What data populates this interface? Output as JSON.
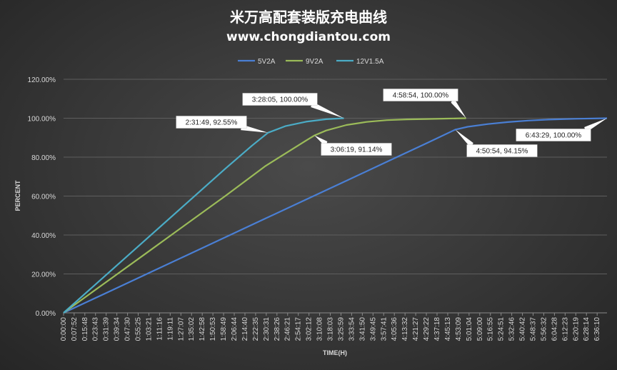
{
  "chart_data": {
    "type": "line",
    "title": "米万高配套装版充电曲线",
    "subtitle": "www.chongdiantou.com",
    "xlabel": "TIME(H)",
    "ylabel": "PERCENT",
    "ylim": [
      0,
      120
    ],
    "yticks": [
      "0.00%",
      "20.00%",
      "40.00%",
      "60.00%",
      "80.00%",
      "100.00%",
      "120.00%"
    ],
    "ytick_values": [
      0,
      20,
      40,
      60,
      80,
      100,
      120
    ],
    "xlim": [
      "0:00:00",
      "6:43:29"
    ],
    "xticks": [
      "0:00:00",
      "0:07:52",
      "0:15:48",
      "0:23:43",
      "0:31:39",
      "0:39:34",
      "0:47:30",
      "0:55:25",
      "1:03:21",
      "1:11:16",
      "1:19:11",
      "1:27:07",
      "1:35:02",
      "1:42:58",
      "1:50:53",
      "1:58:49",
      "2:06:44",
      "2:14:40",
      "2:22:35",
      "2:30:31",
      "2:38:26",
      "2:46:21",
      "2:54:17",
      "3:02:12",
      "3:10:08",
      "3:18:03",
      "3:25:59",
      "3:33:54",
      "3:41:50",
      "3:49:45",
      "3:57:41",
      "4:05:36",
      "4:13:32",
      "4:21:27",
      "4:29:22",
      "4:37:18",
      "4:45:13",
      "4:53:09",
      "5:01:04",
      "5:09:00",
      "5:16:55",
      "5:24:51",
      "5:32:46",
      "5:40:42",
      "5:48:37",
      "5:56:32",
      "6:04:28",
      "6:12:23",
      "6:20:19",
      "6:28:14",
      "6:36:10"
    ],
    "grid": true,
    "legend_position": "top",
    "series": [
      {
        "name": "5V2A",
        "color": "#4a7fd4",
        "points": [
          [
            "0:00:00",
            0
          ],
          [
            "0:30:00",
            9.7
          ],
          [
            "1:00:00",
            19.4
          ],
          [
            "1:30:00",
            29.1
          ],
          [
            "2:00:00",
            38.8
          ],
          [
            "2:30:00",
            48.5
          ],
          [
            "3:00:00",
            58.2
          ],
          [
            "3:30:00",
            67.9
          ],
          [
            "4:00:00",
            77.6
          ],
          [
            "4:30:00",
            87.3
          ],
          [
            "4:50:54",
            94.15
          ],
          [
            "5:00:00",
            95.6
          ],
          [
            "5:15:00",
            97.0
          ],
          [
            "5:30:00",
            98.0
          ],
          [
            "5:45:00",
            98.8
          ],
          [
            "6:00:00",
            99.3
          ],
          [
            "6:20:00",
            99.7
          ],
          [
            "6:43:29",
            100
          ]
        ]
      },
      {
        "name": "9V2A",
        "color": "#9bbb59",
        "points": [
          [
            "0:00:00",
            0
          ],
          [
            "0:30:00",
            15
          ],
          [
            "1:00:00",
            30
          ],
          [
            "1:30:00",
            45
          ],
          [
            "2:00:00",
            60
          ],
          [
            "2:30:00",
            75.5
          ],
          [
            "3:00:00",
            88.5
          ],
          [
            "3:06:19",
            91.14
          ],
          [
            "3:15:00",
            93.7
          ],
          [
            "3:30:00",
            96.5
          ],
          [
            "3:45:00",
            98.1
          ],
          [
            "4:00:00",
            99.0
          ],
          [
            "4:15:00",
            99.4
          ],
          [
            "4:30:00",
            99.6
          ],
          [
            "4:45:00",
            99.8
          ],
          [
            "4:58:54",
            100
          ]
        ]
      },
      {
        "name": "12V1.5A",
        "color": "#4bacc6",
        "points": [
          [
            "0:00:00",
            0
          ],
          [
            "0:30:00",
            18.5
          ],
          [
            "1:00:00",
            37
          ],
          [
            "1:30:00",
            55.5
          ],
          [
            "2:00:00",
            74
          ],
          [
            "2:20:00",
            86
          ],
          [
            "2:31:49",
            92.55
          ],
          [
            "2:45:00",
            96.0
          ],
          [
            "3:00:00",
            98.2
          ],
          [
            "3:15:00",
            99.5
          ],
          [
            "3:28:05",
            100
          ]
        ]
      }
    ],
    "annotations": [
      {
        "text": "2:31:49, 92.55%",
        "series": "12V1.5A",
        "x": "2:31:49",
        "y": 92.55
      },
      {
        "text": "3:28:05, 100.00%",
        "series": "12V1.5A",
        "x": "3:28:05",
        "y": 100
      },
      {
        "text": "3:06:19, 91.14%",
        "series": "9V2A",
        "x": "3:06:19",
        "y": 91.14
      },
      {
        "text": "4:58:54, 100.00%",
        "series": "9V2A",
        "x": "4:58:54",
        "y": 100
      },
      {
        "text": "4:50:54, 94.15%",
        "series": "5V2A",
        "x": "4:50:54",
        "y": 94.15
      },
      {
        "text": "6:43:29, 100.00%",
        "series": "5V2A",
        "x": "6:43:29",
        "y": 100
      }
    ]
  }
}
